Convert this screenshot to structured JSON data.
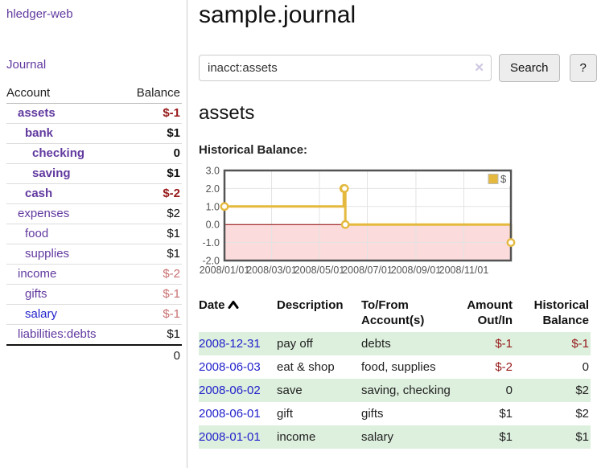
{
  "app": {
    "brand": "hledger-web",
    "nav_journal": "Journal"
  },
  "sidebar": {
    "columns": [
      "Account",
      "Balance"
    ],
    "accounts": [
      {
        "name": "assets",
        "indent": 1,
        "bold": true,
        "balance": "$-1",
        "balance_style": "neg-strong"
      },
      {
        "name": "bank",
        "indent": 2,
        "bold": true,
        "balance": "$1",
        "balance_style": "pos"
      },
      {
        "name": "checking",
        "indent": 3,
        "bold": true,
        "balance": "0",
        "balance_style": "pos"
      },
      {
        "name": "saving",
        "indent": 3,
        "bold": true,
        "balance": "$1",
        "balance_style": "pos"
      },
      {
        "name": "cash",
        "indent": 2,
        "bold": true,
        "balance": "$-2",
        "balance_style": "neg-strong"
      },
      {
        "name": "expenses",
        "indent": 1,
        "bold": false,
        "balance": "$2",
        "balance_style": "pos"
      },
      {
        "name": "food",
        "indent": 2,
        "bold": false,
        "balance": "$1",
        "balance_style": "pos"
      },
      {
        "name": "supplies",
        "indent": 2,
        "bold": false,
        "balance": "$1",
        "balance_style": "pos"
      },
      {
        "name": "income",
        "indent": 1,
        "bold": false,
        "balance": "$-2",
        "balance_style": "neg-soft"
      },
      {
        "name": "gifts",
        "indent": 2,
        "bold": false,
        "balance": "$-1",
        "balance_style": "neg-soft"
      },
      {
        "name": "salary",
        "indent": 2,
        "bold": false,
        "balance": "$-1",
        "balance_style": "neg-soft",
        "link_color": "blue"
      },
      {
        "name": "liabilities:debts",
        "indent": 1,
        "bold": false,
        "balance": "$1",
        "balance_style": "pos"
      }
    ],
    "total": "0"
  },
  "header": {
    "title": "sample.journal"
  },
  "search": {
    "value": "inacct:assets",
    "clear_icon": "✕",
    "button": "Search",
    "help_button": "?"
  },
  "account_page": {
    "heading": "assets",
    "chart_label": "Historical Balance:"
  },
  "chart_data": {
    "type": "line",
    "title": "Historical Balance:",
    "steps": true,
    "series": [
      {
        "name": "$",
        "color": "#e4b93e",
        "points": [
          {
            "date": "2008-01-01",
            "value": 1
          },
          {
            "date": "2008-06-01",
            "value": 2
          },
          {
            "date": "2008-06-02",
            "value": 2
          },
          {
            "date": "2008-06-03",
            "value": 0
          },
          {
            "date": "2008-12-31",
            "value": -1
          }
        ]
      }
    ],
    "x_range": [
      "2008-01-01",
      "2008-12-31"
    ],
    "ylim": [
      -2.0,
      3.0
    ],
    "yticks": [
      "3.0",
      "2.0",
      "1.0",
      "0.0",
      "-1.0",
      "-2.0"
    ],
    "xticks": [
      "2008/01/01",
      "2008/03/01",
      "2008/05/01",
      "2008/07/01",
      "2008/09/01",
      "2008/11/01"
    ],
    "grid": true,
    "legend": {
      "label": "$",
      "position": "top-right"
    },
    "negative_fill": "#fbdbdb",
    "zero_line_color": "#8b0000",
    "border_color": "#545454",
    "grid_color": "#e3e3e3",
    "tick_color": "#545454"
  },
  "register": {
    "headers": {
      "date": "Date",
      "sort_icon": "chevron-up",
      "description": "Description",
      "account": "To/From Account(s)",
      "amount": "Amount Out/In",
      "balance": "Historical Balance"
    },
    "rows": [
      {
        "date": "2008-12-31",
        "description": "pay off",
        "account": "debts",
        "amount": "$-1",
        "amount_negative": true,
        "balance": "$-1",
        "balance_negative": true,
        "shaded": true
      },
      {
        "date": "2008-06-03",
        "description": "eat & shop",
        "account": "food, supplies",
        "amount": "$-2",
        "amount_negative": true,
        "balance": "0",
        "balance_negative": false,
        "shaded": false
      },
      {
        "date": "2008-06-02",
        "description": "save",
        "account": "saving, checking",
        "amount": "0",
        "amount_negative": false,
        "balance": "$2",
        "balance_negative": false,
        "shaded": true
      },
      {
        "date": "2008-06-01",
        "description": "gift",
        "account": "gifts",
        "amount": "$1",
        "amount_negative": false,
        "balance": "$2",
        "balance_negative": false,
        "shaded": false
      },
      {
        "date": "2008-01-01",
        "description": "income",
        "account": "salary",
        "amount": "$1",
        "amount_negative": false,
        "balance": "$1",
        "balance_negative": false,
        "shaded": true
      }
    ]
  },
  "colors": {
    "accent_purple": "#61399f",
    "link_blue": "#2222cc",
    "negative_strong": "#961919",
    "negative_soft": "#c96f6f",
    "row_stripe_green": "#ddefdd",
    "chart_line_gold": "#e4b93e"
  }
}
